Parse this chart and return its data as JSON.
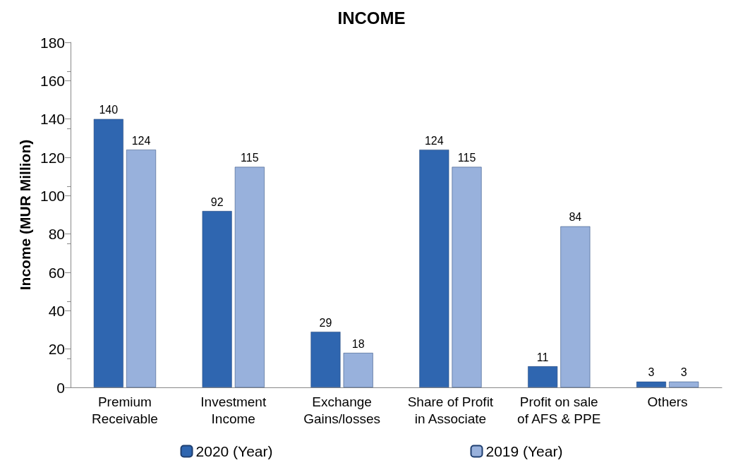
{
  "chart_data": {
    "type": "bar",
    "title": "INCOME",
    "ylabel": "Income (MUR Million)",
    "categories": [
      "Premium\nReceivable",
      "Investment\nIncome",
      "Exchange\nGains/losses",
      "Share of Profit\nin Associate",
      "Profit on sale\nof AFS & PPE",
      "Others"
    ],
    "series": [
      {
        "name": "2020 (Year)",
        "color": "#2f66b0",
        "values": [
          140,
          92,
          29,
          124,
          11,
          3
        ]
      },
      {
        "name": "2019 (Year)",
        "color": "#98b1dc",
        "values": [
          124,
          115,
          18,
          115,
          84,
          3
        ]
      }
    ],
    "ylim": [
      0,
      180
    ],
    "yticks": [
      0,
      20,
      40,
      60,
      80,
      100,
      120,
      140,
      160,
      180
    ],
    "grid": false,
    "legend": "bottom",
    "data_labels": true
  }
}
